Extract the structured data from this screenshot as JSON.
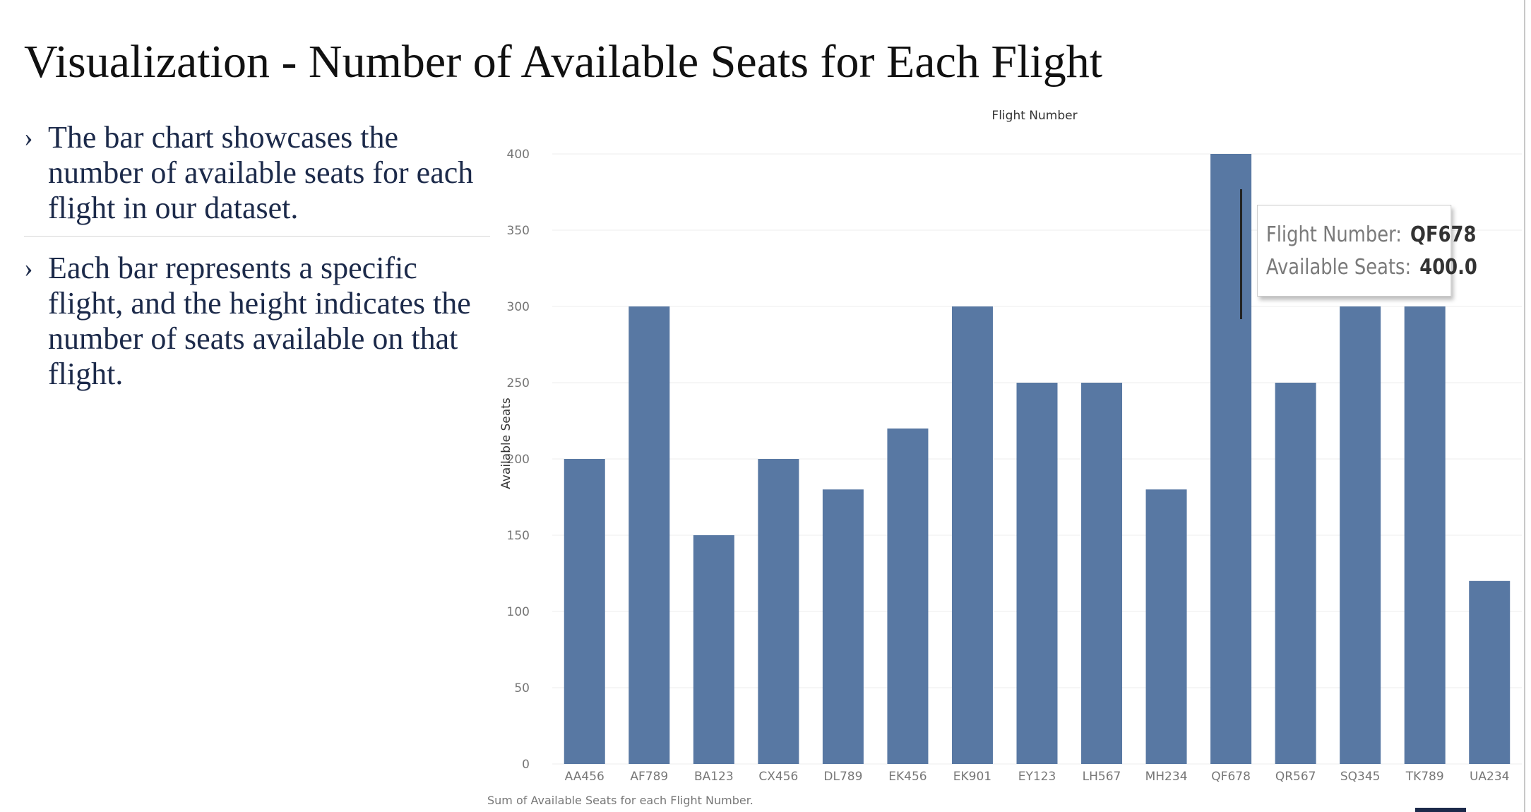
{
  "slide": {
    "title": "Visualization - Number of Available Seats for Each Flight",
    "bullets": [
      "The bar chart showcases the number of available seats for each flight in our dataset.",
      "Each bar represents a specific flight, and the height indicates the number of seats available on that flight."
    ],
    "bullet_marker": "›"
  },
  "chart_data": {
    "type": "bar",
    "title": "Flight Number",
    "xlabel": "",
    "ylabel": "Available Seats",
    "caption": "Sum of Available Seats for each Flight Number.",
    "categories": [
      "AA456",
      "AF789",
      "BA123",
      "CX456",
      "DL789",
      "EK456",
      "EK901",
      "EY123",
      "LH567",
      "MH234",
      "QF678",
      "QR567",
      "SQ345",
      "TK789",
      "UA234"
    ],
    "values": [
      200,
      300,
      150,
      200,
      180,
      220,
      300,
      250,
      250,
      180,
      400,
      250,
      300,
      300,
      120
    ],
    "ylim": [
      0,
      400
    ],
    "yticks": [
      0,
      50,
      100,
      150,
      200,
      250,
      300,
      350,
      400
    ],
    "grid": true,
    "bar_color": "#5878a3",
    "legend": "none"
  },
  "tooltip": {
    "label_1": "Flight Number:",
    "value_1": "QF678",
    "label_2": "Available Seats:",
    "value_2": "400.0"
  }
}
